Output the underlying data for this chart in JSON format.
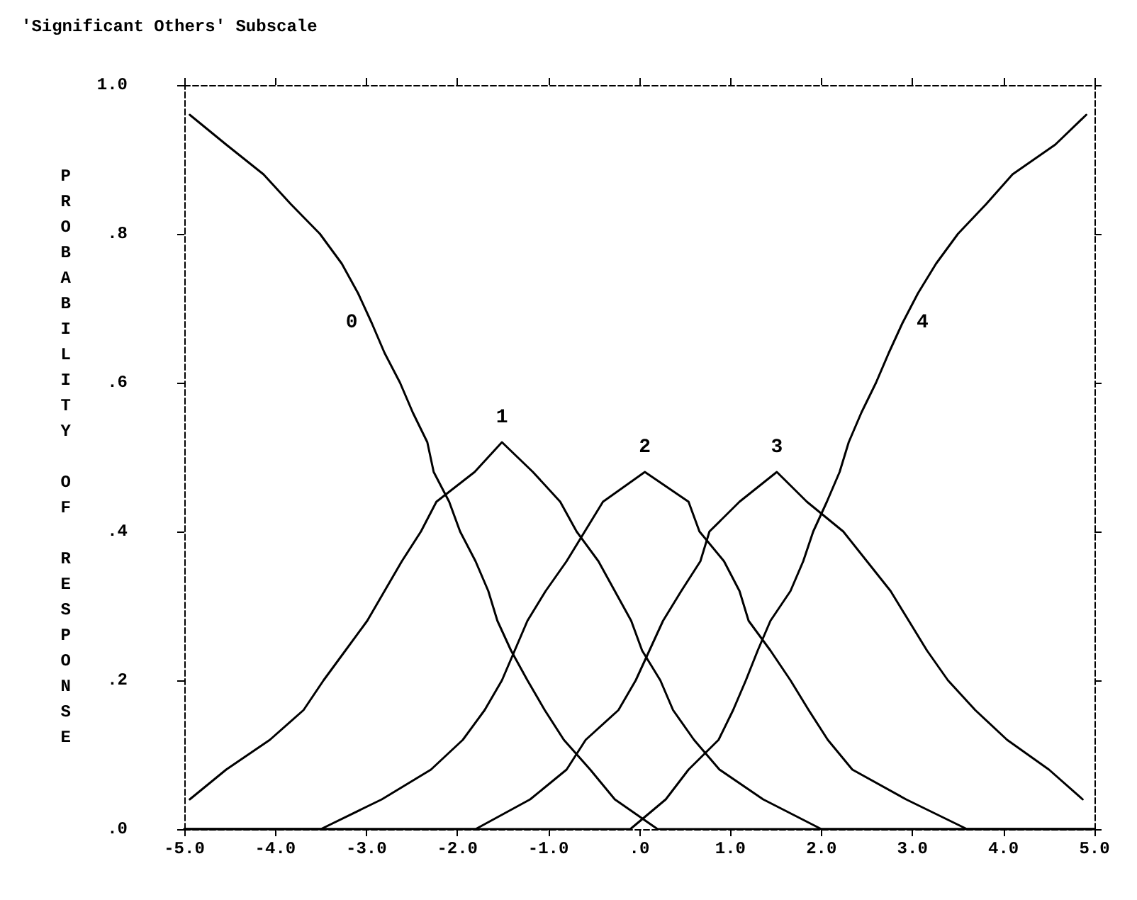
{
  "chart_data": {
    "type": "line",
    "title": "'Significant Others' Subscale",
    "ylabel": "PROBABILITY OF RESPONSE",
    "xlim": [
      -5,
      5
    ],
    "ylim": [
      0,
      1
    ],
    "xticks": [
      {
        "value": -5,
        "label": "-5.0"
      },
      {
        "value": -4,
        "label": "-4.0"
      },
      {
        "value": -3,
        "label": "-3.0"
      },
      {
        "value": -2,
        "label": "-2.0"
      },
      {
        "value": -1,
        "label": "-1.0"
      },
      {
        "value": 0,
        "label": ".0"
      },
      {
        "value": 1,
        "label": "1.0"
      },
      {
        "value": 2,
        "label": "2.0"
      },
      {
        "value": 3,
        "label": "3.0"
      },
      {
        "value": 4,
        "label": "4.0"
      },
      {
        "value": 5,
        "label": "5.0"
      }
    ],
    "yticks": [
      {
        "value": 0,
        "label": ".0"
      },
      {
        "value": 0.2,
        "label": ".2"
      },
      {
        "value": 0.4,
        "label": ".4"
      },
      {
        "value": 0.6,
        "label": ".6"
      },
      {
        "value": 0.8,
        "label": ".8"
      },
      {
        "value": 1,
        "label": "1.0"
      }
    ],
    "grid": false,
    "legend": false,
    "marker": "none",
    "line_style": "solid",
    "series": [
      {
        "name": "0",
        "color": "#000000",
        "x": [
          -4.94,
          -4.54,
          -4.13,
          -3.83,
          -3.51,
          -3.27,
          -3.09,
          -2.94,
          -2.8,
          -2.63,
          -2.49,
          -2.33,
          -2.26,
          -2.09,
          -1.97,
          -1.8,
          -1.66,
          -1.56,
          -1.41,
          -1.23,
          -1.04,
          -0.83,
          -0.54,
          -0.27,
          0.2,
          5
        ],
        "values": [
          0.96,
          0.92,
          0.88,
          0.84,
          0.8,
          0.76,
          0.72,
          0.68,
          0.64,
          0.6,
          0.56,
          0.52,
          0.48,
          0.44,
          0.4,
          0.36,
          0.32,
          0.28,
          0.24,
          0.2,
          0.16,
          0.12,
          0.08,
          0.04,
          0,
          0
        ]
      },
      {
        "name": "1",
        "color": "#000000",
        "x": [
          -4.94,
          -4.54,
          -4.06,
          -3.69,
          -3.47,
          -3.23,
          -2.99,
          -2.8,
          -2.61,
          -2.4,
          -2.23,
          -1.81,
          -1.51,
          -1.17,
          -0.87,
          -0.69,
          -0.45,
          -0.27,
          -0.09,
          0.03,
          0.23,
          0.37,
          0.6,
          0.88,
          1.36,
          2,
          5
        ],
        "values": [
          0.04,
          0.08,
          0.12,
          0.16,
          0.2,
          0.24,
          0.28,
          0.32,
          0.36,
          0.4,
          0.44,
          0.48,
          0.52,
          0.48,
          0.44,
          0.4,
          0.36,
          0.32,
          0.28,
          0.24,
          0.2,
          0.16,
          0.12,
          0.08,
          0.04,
          0,
          0
        ]
      },
      {
        "name": "2",
        "color": "#000000",
        "x": [
          -5,
          -3.5,
          -2.83,
          -2.29,
          -1.94,
          -1.7,
          -1.51,
          -1.23,
          -1.03,
          -0.8,
          -0.4,
          0.06,
          0.54,
          0.66,
          0.93,
          1.1,
          1.2,
          1.44,
          1.66,
          1.86,
          2.07,
          2.34,
          2.93,
          3.6,
          5
        ],
        "values": [
          0,
          0,
          0.04,
          0.08,
          0.12,
          0.16,
          0.2,
          0.28,
          0.32,
          0.36,
          0.44,
          0.48,
          0.44,
          0.4,
          0.36,
          0.32,
          0.28,
          0.24,
          0.2,
          0.16,
          0.12,
          0.08,
          0.04,
          0,
          0
        ]
      },
      {
        "name": "3",
        "color": "#000000",
        "x": [
          -5,
          -1.8,
          -1.2,
          -0.8,
          -0.59,
          -0.23,
          -0.04,
          0.26,
          0.46,
          0.67,
          0.77,
          1.1,
          1.51,
          1.84,
          2.24,
          2.5,
          2.76,
          2.96,
          3.16,
          3.39,
          3.69,
          4.04,
          4.5,
          4.87
        ],
        "values": [
          0,
          0,
          0.04,
          0.08,
          0.12,
          0.16,
          0.2,
          0.28,
          0.32,
          0.36,
          0.4,
          0.44,
          0.48,
          0.44,
          0.4,
          0.36,
          0.32,
          0.28,
          0.24,
          0.2,
          0.16,
          0.12,
          0.08,
          0.04
        ]
      },
      {
        "name": "4",
        "color": "#000000",
        "x": [
          -5,
          -0.1,
          0.29,
          0.54,
          0.87,
          1.03,
          1.17,
          1.3,
          1.44,
          1.66,
          1.8,
          1.91,
          2.06,
          2.2,
          2.3,
          2.44,
          2.6,
          2.74,
          2.89,
          3.06,
          3.26,
          3.5,
          3.81,
          4.1,
          4.57,
          4.91
        ],
        "values": [
          0,
          0,
          0.04,
          0.08,
          0.12,
          0.16,
          0.2,
          0.24,
          0.28,
          0.32,
          0.36,
          0.4,
          0.44,
          0.48,
          0.52,
          0.56,
          0.6,
          0.64,
          0.68,
          0.72,
          0.76,
          0.8,
          0.84,
          0.88,
          0.92,
          0.96
        ]
      }
    ]
  }
}
